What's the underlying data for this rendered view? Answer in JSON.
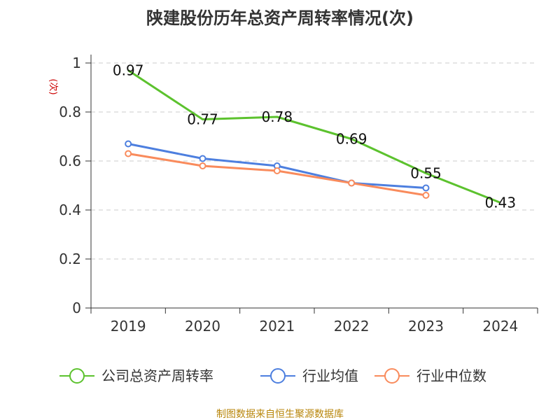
{
  "chart_data": {
    "type": "line",
    "title": "陕建股份历年总资产周转率情况(次)",
    "ylabel": "(次)",
    "xlabel": "",
    "categories": [
      "2019",
      "2020",
      "2021",
      "2022",
      "2023",
      "2024"
    ],
    "ylim": [
      0,
      1
    ],
    "yticks": [
      "0",
      "0.2",
      "0.4",
      "0.6",
      "0.8",
      "1"
    ],
    "grid": true,
    "legend_position": "bottom",
    "series": [
      {
        "name": "公司总资产周转率",
        "color": "#5cc22e",
        "values": [
          0.97,
          0.77,
          0.78,
          0.69,
          0.55,
          0.43
        ],
        "labels": [
          "0.97",
          "0.77",
          "0.78",
          "0.69",
          "0.55",
          "0.43"
        ],
        "show_labels": true,
        "markers": false
      },
      {
        "name": "行业均值",
        "color": "#4d7fdf",
        "values": [
          0.67,
          0.61,
          0.58,
          0.51,
          0.49,
          null
        ],
        "show_labels": false,
        "markers": true
      },
      {
        "name": "行业中位数",
        "color": "#f98b5c",
        "values": [
          0.63,
          0.58,
          0.56,
          0.51,
          0.46,
          null
        ],
        "show_labels": false,
        "markers": true
      }
    ],
    "source": "制图数据来自恒生聚源数据库"
  }
}
